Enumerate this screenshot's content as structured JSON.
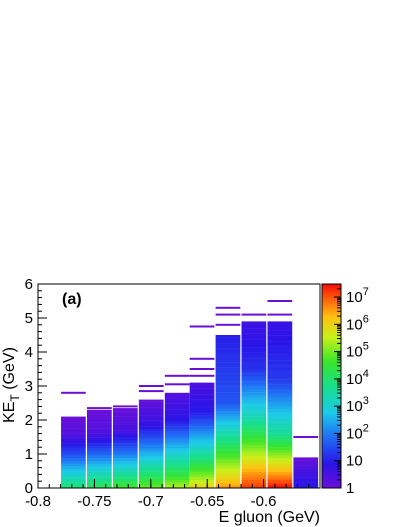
{
  "chart_data": {
    "type": "heatmap",
    "panel_label": "(a)",
    "xlabel": "E gluon (GeV)",
    "ylabel": "KE_T (GeV)",
    "xlim": [
      -0.8,
      -0.55
    ],
    "ylim": [
      0,
      6
    ],
    "x_ticks": [
      "-0.8",
      "-0.75",
      "-0.7",
      "-0.65",
      "-0.6"
    ],
    "x_tick_values": [
      -0.8,
      -0.75,
      -0.7,
      -0.65,
      -0.6
    ],
    "y_ticks": [
      "0",
      "1",
      "2",
      "3",
      "4",
      "5",
      "6"
    ],
    "y_tick_values": [
      0,
      1,
      2,
      3,
      4,
      5,
      6
    ],
    "z_scale": "log",
    "z_range": [
      1,
      30000000
    ],
    "colorbar_ticks": [
      {
        "value": 1,
        "base": "1",
        "exp": ""
      },
      {
        "value": 10,
        "base": "10",
        "exp": ""
      },
      {
        "value": 100,
        "base": "10",
        "exp": "2"
      },
      {
        "value": 1000,
        "base": "10",
        "exp": "3"
      },
      {
        "value": 10000,
        "base": "10",
        "exp": "4"
      },
      {
        "value": 100000,
        "base": "10",
        "exp": "5"
      },
      {
        "value": 1000000,
        "base": "10",
        "exp": "6"
      },
      {
        "value": 10000000,
        "base": "10",
        "exp": "7"
      }
    ],
    "bin_width": 0.0228,
    "y_bin_height": 0.08,
    "columns": [
      {
        "x0": -0.78,
        "bands": [
          [
            0,
            0.4,
            4.0
          ],
          [
            0.4,
            1.0,
            3.0
          ],
          [
            1.0,
            1.6,
            1.5
          ],
          [
            1.6,
            2.1,
            0.3
          ]
        ],
        "extras": [
          2.8
        ]
      },
      {
        "x0": -0.757,
        "bands": [
          [
            0,
            0.4,
            4.3
          ],
          [
            0.4,
            1.0,
            3.3
          ],
          [
            1.0,
            1.6,
            1.8
          ],
          [
            1.6,
            2.3,
            0.4
          ]
        ],
        "extras": [
          2.35
        ]
      },
      {
        "x0": -0.734,
        "bands": [
          [
            0,
            0.4,
            4.7
          ],
          [
            0.4,
            1.0,
            3.6
          ],
          [
            1.0,
            1.7,
            2.0
          ],
          [
            1.7,
            2.35,
            0.5
          ]
        ],
        "extras": [
          2.4
        ]
      },
      {
        "x0": -0.711,
        "bands": [
          [
            0,
            0.4,
            5.0
          ],
          [
            0.4,
            1.1,
            4.0
          ],
          [
            1.1,
            1.9,
            2.3
          ],
          [
            1.9,
            2.6,
            0.7
          ]
        ],
        "extras": [
          2.85,
          3.0
        ]
      },
      {
        "x0": -0.688,
        "bands": [
          [
            0,
            0.4,
            5.4
          ],
          [
            0.4,
            1.1,
            4.4
          ],
          [
            1.1,
            2.0,
            2.8
          ],
          [
            2.0,
            2.8,
            0.9
          ]
        ],
        "extras": [
          3.05,
          3.3
        ]
      },
      {
        "x0": -0.666,
        "bands": [
          [
            0,
            0.4,
            6.0
          ],
          [
            0.4,
            1.1,
            5.0
          ],
          [
            1.1,
            2.2,
            3.3
          ],
          [
            2.2,
            3.1,
            1.0
          ]
        ],
        "extras": [
          3.3,
          3.5,
          3.8,
          4.75
        ]
      },
      {
        "x0": -0.643,
        "bands": [
          [
            0,
            0.5,
            6.6
          ],
          [
            0.5,
            1.3,
            5.6
          ],
          [
            1.3,
            2.5,
            4.0
          ],
          [
            2.5,
            4.5,
            1.6
          ]
        ],
        "extras": [
          4.8,
          5.1,
          5.3
        ]
      },
      {
        "x0": -0.62,
        "bands": [
          [
            0,
            0.4,
            7.2
          ],
          [
            0.4,
            1.1,
            6.6
          ],
          [
            1.1,
            2.1,
            5.2
          ],
          [
            2.1,
            3.5,
            3.3
          ],
          [
            3.5,
            4.9,
            1.2
          ]
        ],
        "extras": [
          5.1
        ]
      },
      {
        "x0": -0.597,
        "bands": [
          [
            0,
            0.8,
            7.5
          ],
          [
            0.8,
            1.6,
            5.6
          ],
          [
            1.6,
            3.2,
            3.6
          ],
          [
            3.2,
            4.9,
            1.3
          ]
        ],
        "extras": [
          5.5,
          5.1
        ]
      },
      {
        "x0": -0.574,
        "bands": [
          [
            0,
            0.5,
            1.0
          ],
          [
            0.5,
            0.9,
            0.5
          ]
        ],
        "extras": [
          1.5
        ]
      }
    ]
  }
}
